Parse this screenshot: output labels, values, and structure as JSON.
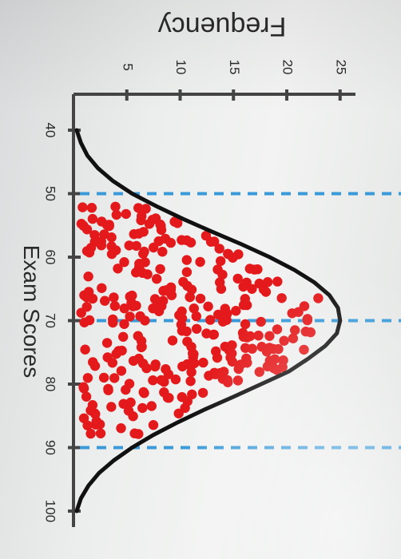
{
  "chart_data": {
    "type": "scatter",
    "title": "",
    "xlabel": "Exam Scores",
    "ylabel": "Frequency",
    "x_ticks": [
      "40",
      "50",
      "60",
      "70",
      "80",
      "90",
      "100"
    ],
    "y_ticks": [
      "5",
      "10",
      "15",
      "20",
      "25"
    ],
    "xlim": [
      40,
      100
    ],
    "ylim": [
      0,
      27
    ],
    "reference_lines_x": [
      50,
      70,
      90
    ],
    "curve": {
      "x": [
        40,
        42,
        44,
        46,
        48,
        50,
        52,
        54,
        56,
        58,
        60,
        62,
        64,
        66,
        68,
        70,
        72,
        74,
        76,
        78,
        80,
        82,
        84,
        86,
        88,
        90,
        92,
        94,
        96,
        98,
        100
      ],
      "y": [
        0.3,
        0.7,
        1.3,
        2.3,
        3.7,
        5.5,
        7.8,
        10.3,
        13.0,
        15.8,
        18.4,
        20.7,
        22.6,
        24.0,
        24.8,
        25.0,
        24.7,
        23.6,
        22.0,
        20.2,
        17.6,
        15.0,
        12.3,
        9.8,
        7.5,
        5.5,
        3.8,
        2.4,
        1.4,
        0.7,
        0.3
      ]
    },
    "dot_color": "#e4191b",
    "curve_color": "#111111",
    "reference_line_color": "#3a9ad9",
    "dot_count": 300
  }
}
